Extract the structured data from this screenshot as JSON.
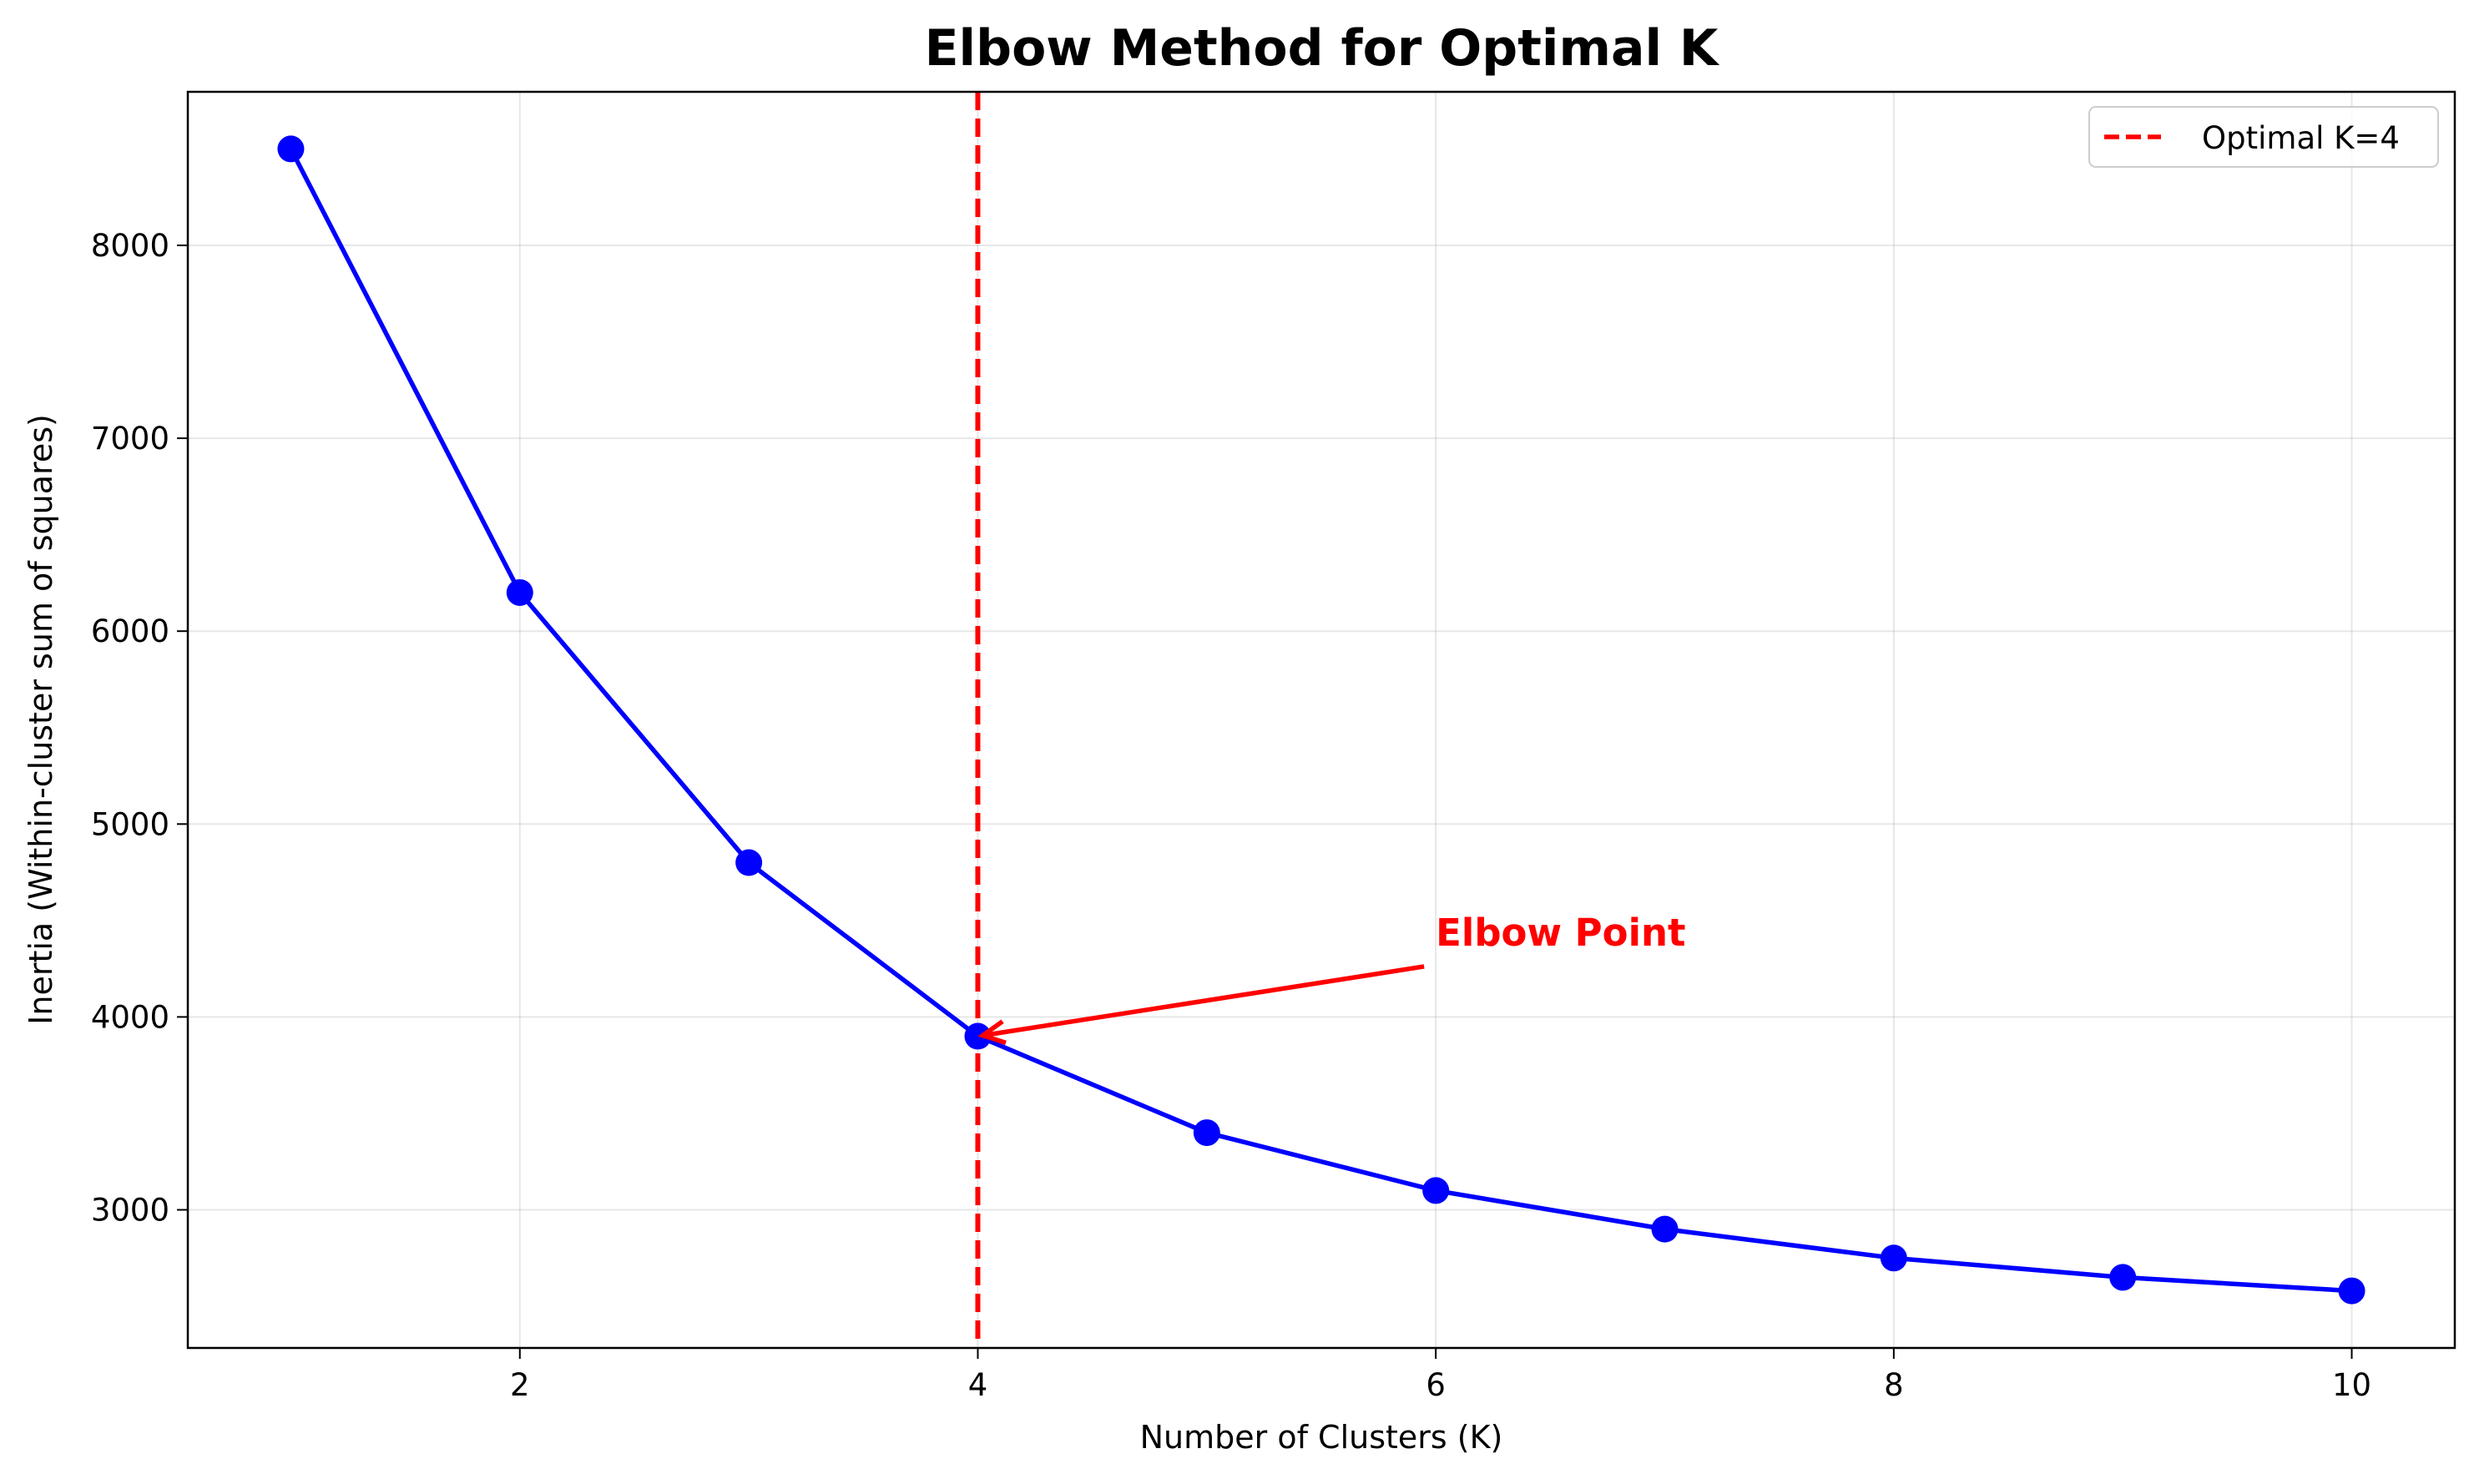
{
  "chart_data": {
    "type": "line",
    "title": "Elbow Method for Optimal K",
    "xlabel": "Number of Clusters (K)",
    "ylabel": "Inertia (Within-cluster sum of squares)",
    "x": [
      1,
      2,
      3,
      4,
      5,
      6,
      7,
      8,
      9,
      10
    ],
    "series": [
      {
        "values": [
          8500,
          6200,
          4800,
          3900,
          3400,
          3100,
          2900,
          2750,
          2650,
          2580
        ],
        "color": "#0000ff"
      }
    ],
    "xlim": [
      0.55,
      10.45
    ],
    "ylim": [
      2284,
      8796
    ],
    "xticks": [
      2,
      4,
      6,
      8,
      10
    ],
    "yticks": [
      3000,
      4000,
      5000,
      6000,
      7000,
      8000
    ],
    "grid": true,
    "optimal_line": {
      "x": 4,
      "label": "Optimal K=4",
      "color": "#ff0000",
      "style": "dashed"
    },
    "annotation": {
      "text": "Elbow Point",
      "color": "#ff0000",
      "text_x": 6,
      "text_y": 4400,
      "point_x": 4,
      "point_y": 3900
    },
    "legend": {
      "position": "top-right",
      "entries": [
        "Optimal K=4"
      ]
    }
  }
}
